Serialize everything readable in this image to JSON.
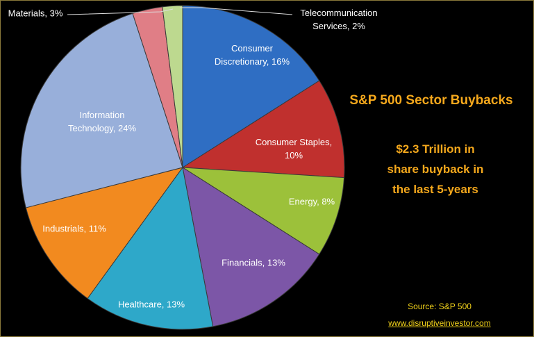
{
  "chart_data": {
    "type": "pie",
    "title": "S&P 500 Sector Buybacks",
    "subtitle": [
      "$2.3 Trillion in",
      "share buyback in",
      "the last 5-years"
    ],
    "source": "Source: S&P 500",
    "website": "www.disruptiveinvestor.com",
    "categories": [
      "Consumer Discretionary, 16%",
      "Consumer Staples, 10%",
      "Energy, 8%",
      "Financials, 13%",
      "Healthcare, 13%",
      "Industrials, 11%",
      "Information Technology, 24%",
      "Materials, 3%",
      "Telecommunication Services, 2%"
    ],
    "values": [
      16,
      10,
      8,
      13,
      13,
      11,
      24,
      3,
      2
    ],
    "colors": [
      "#2f6ec3",
      "#c0302e",
      "#9cc13a",
      "#7c56a7",
      "#2ea8c9",
      "#f28a1f",
      "#98afda",
      "#e07e86",
      "#bdd98f"
    ]
  }
}
